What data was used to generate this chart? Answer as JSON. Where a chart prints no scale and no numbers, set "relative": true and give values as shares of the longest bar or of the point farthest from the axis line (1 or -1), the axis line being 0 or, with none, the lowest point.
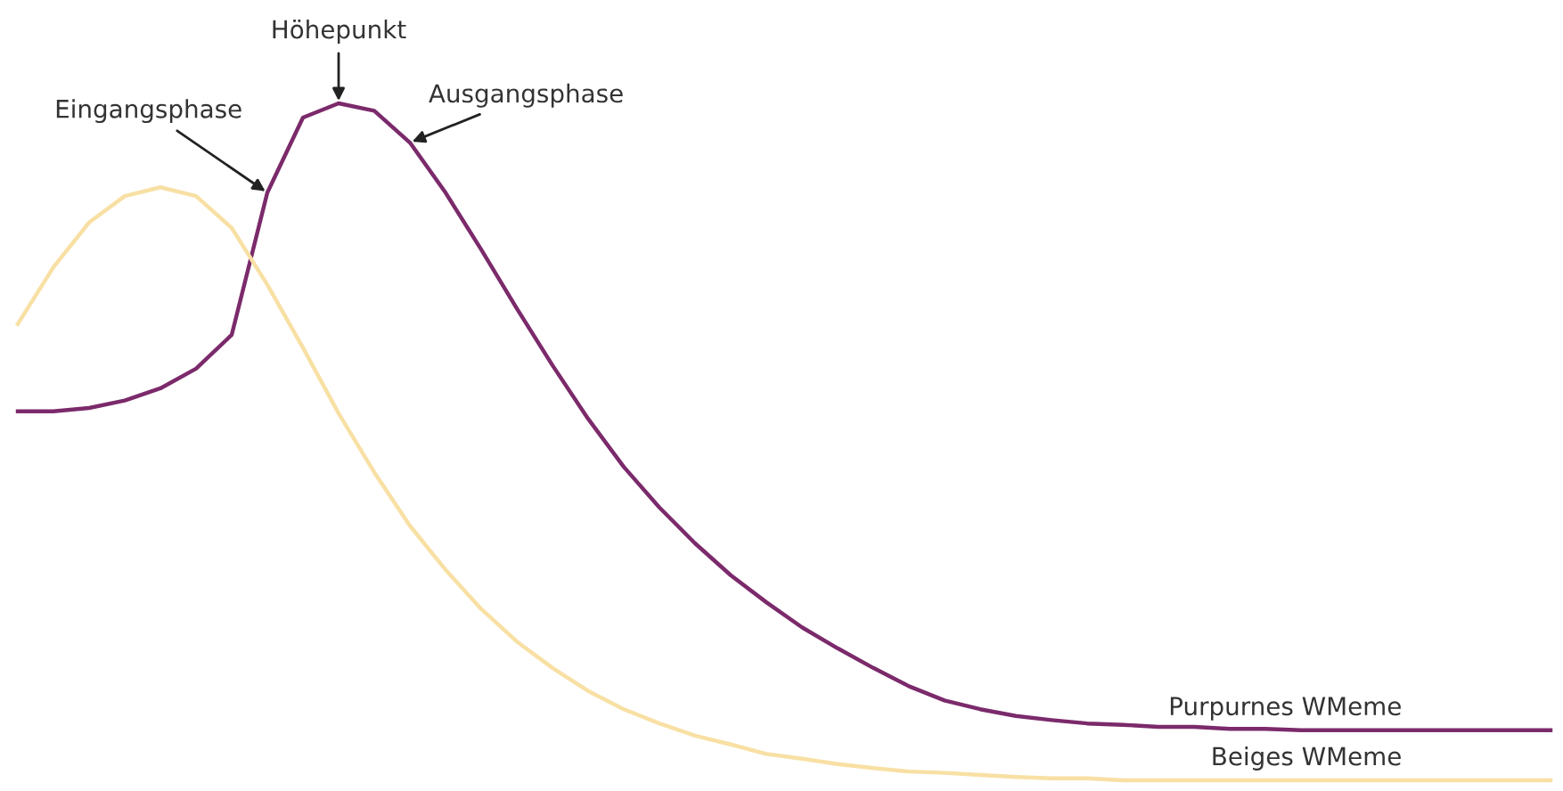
{
  "chart_data": {
    "type": "line",
    "relative": true,
    "categories": [
      null,
      null,
      null,
      null,
      null,
      null,
      null,
      null,
      null,
      null,
      null,
      null,
      null,
      null,
      null,
      null,
      null,
      null,
      null,
      null,
      null,
      null,
      null,
      null,
      null,
      null,
      null,
      null,
      null,
      null,
      null,
      null,
      null,
      null,
      null,
      null,
      null,
      null,
      null,
      null,
      null,
      null,
      null,
      null
    ],
    "series": [
      {
        "name": "Purpurnes WMeme",
        "color": "#7b2a6b",
        "values": [
          0.545,
          0.545,
          0.55,
          0.561,
          0.579,
          0.608,
          0.658,
          0.868,
          0.979,
          1,
          0.989,
          0.942,
          0.868,
          0.784,
          0.697,
          0.613,
          0.534,
          0.463,
          0.403,
          0.35,
          0.303,
          0.263,
          0.226,
          0.195,
          0.166,
          0.139,
          0.118,
          0.105,
          0.095,
          0.089,
          0.084,
          0.082,
          0.079,
          0.079,
          0.076,
          0.076,
          0.074,
          0.074,
          0.074,
          0.074,
          0.074,
          0.074,
          0.074,
          0.074
        ]
      },
      {
        "name": "Beiges WMeme",
        "color": "#f8e0a4",
        "values": [
          0.674,
          0.758,
          0.824,
          0.863,
          0.876,
          0.863,
          0.816,
          0.732,
          0.639,
          0.542,
          0.455,
          0.376,
          0.311,
          0.253,
          0.205,
          0.166,
          0.132,
          0.105,
          0.084,
          0.066,
          0.053,
          0.039,
          0.032,
          0.024,
          0.018,
          0.013,
          0.011,
          0.008,
          0.005,
          0.003,
          0.003,
          0,
          0,
          0,
          0,
          0,
          0,
          0,
          0,
          0,
          0,
          0,
          0,
          0
        ]
      }
    ],
    "annotations": [
      "Eingangsphase",
      "Höhepunkt",
      "Ausgangsphase"
    ],
    "legend": false,
    "marker": "none",
    "line_style": "solid"
  }
}
